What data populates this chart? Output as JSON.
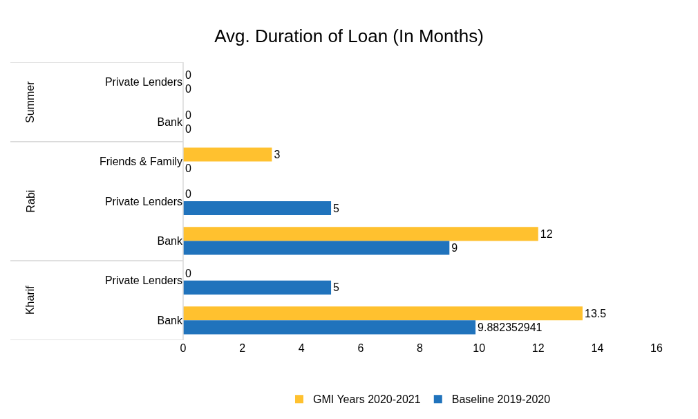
{
  "chart_data": {
    "type": "bar",
    "orientation": "horizontal",
    "title": "Avg. Duration of Loan (In Months)",
    "categories": [
      [
        "Summer",
        "Private Lenders"
      ],
      [
        null,
        "Bank"
      ],
      [
        "Rabi",
        "Friends & Family"
      ],
      [
        null,
        "Private Lenders"
      ],
      [
        null,
        "Bank"
      ],
      [
        "Kharif",
        "Private Lenders"
      ],
      [
        null,
        "Bank"
      ]
    ],
    "series": [
      {
        "name": "GMI Years 2020-2021",
        "color": "#ffc12f",
        "values": [
          0,
          0,
          3,
          0,
          12,
          0,
          13.5
        ]
      },
      {
        "name": "Baseline 2019-2020",
        "color": "#2073bc",
        "values": [
          0,
          0,
          0,
          5,
          9,
          5,
          9.882352941
        ]
      }
    ],
    "xlim": [
      0,
      16
    ],
    "xticks": [
      0,
      2,
      4,
      6,
      8,
      10,
      12,
      14,
      16
    ],
    "data_labels": true,
    "grid": false,
    "legend": "bottom"
  }
}
